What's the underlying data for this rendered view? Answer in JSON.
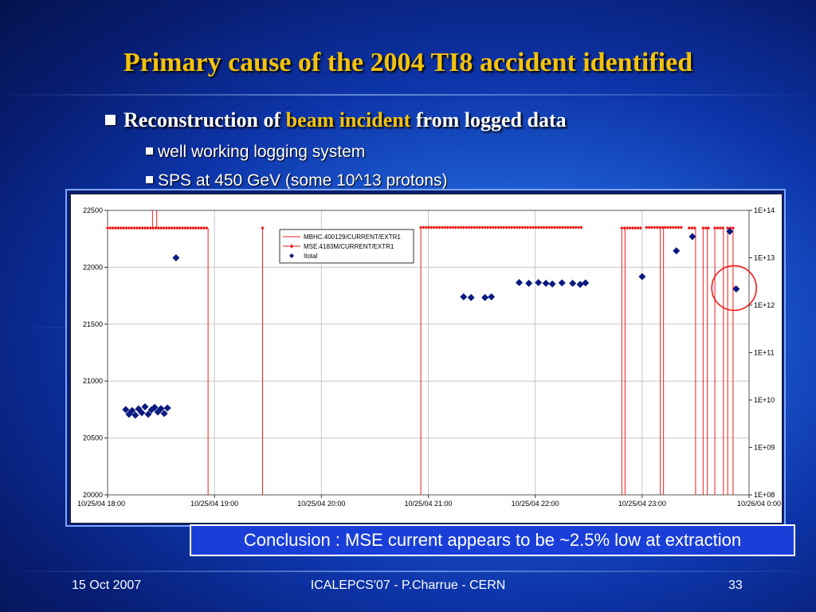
{
  "slide": {
    "title": "Primary cause of the 2004 TI8 accident identified",
    "bullet_main_pre": "Reconstruction of",
    "bullet_main_highlight": "beam incident",
    "bullet_main_post": "from logged data",
    "sub_bullets": [
      "well working logging system",
      "SPS at 450 GeV (some 10^13 protons)"
    ],
    "conclusion": "Conclusion : MSE current appears to be ~2.5% low at extraction",
    "footer": {
      "date": "15 Oct 2007",
      "center": "ICALEPCS'07 - P.Charrue - CERN",
      "page": "33"
    },
    "colors": {
      "title": "#f4c20d",
      "highlight": "#f4c20d",
      "series_red": "#ee1c1c",
      "series_blue": "#0a1a80",
      "annotation_circle": "#ee1c1c"
    }
  },
  "chart_data": {
    "type": "line",
    "y_left": {
      "ylim": [
        20000,
        22500
      ],
      "ticks": [
        "20000",
        "20500",
        "21000",
        "21500",
        "22000",
        "22500"
      ]
    },
    "y_right": {
      "scale": "log",
      "ylim": [
        100000000.0,
        100000000000000.0
      ],
      "ticks": [
        "1E+08",
        "1E+09",
        "1E+10",
        "1E+11",
        "1E+12",
        "1E+13",
        "1E+14"
      ]
    },
    "x_ticks": [
      "10/25/04 18:00",
      "10/25/04 19:00",
      "10/25/04 20:00",
      "10/25/04 21:00",
      "10/25/04 22:00",
      "10/25/04 23:00",
      "10/26/04 0:00"
    ],
    "x_range_hours": [
      0,
      6
    ],
    "legend": [
      "MBHC.400129/CURRENT/EXTR1",
      "MSE.4183M/CURRENT/EXTR1",
      "Itotal"
    ],
    "legend_position": "top-center",
    "grid": true,
    "series": [
      {
        "name": "MBHC.400129/CURRENT/EXTR1",
        "axis": "left",
        "style": "spikes",
        "spikes_hours": [
          0.94,
          1.45,
          2.93,
          4.81,
          4.84,
          5.17,
          5.2,
          5.5,
          5.57,
          5.61,
          5.68,
          5.76,
          5.8,
          5.85
        ],
        "tall_spikes_hours": [
          0.42,
          0.46
        ]
      },
      {
        "name": "MSE.4183M/CURRENT/EXTR1",
        "axis": "left",
        "segments": [
          {
            "x_start": 0.0,
            "x_end": 0.94,
            "y": 22345
          },
          {
            "x_start": 1.45,
            "x_end": 1.45,
            "y": 22345
          },
          {
            "x_start": 2.93,
            "x_end": 4.43,
            "y": 22350
          },
          {
            "x_start": 4.81,
            "x_end": 4.99,
            "y": 22345
          },
          {
            "x_start": 5.04,
            "x_end": 5.38,
            "y": 22350
          },
          {
            "x_start": 5.44,
            "x_end": 5.5,
            "y": 22345
          },
          {
            "x_start": 5.57,
            "x_end": 5.63,
            "y": 22345
          },
          {
            "x_start": 5.68,
            "x_end": 5.76,
            "y": 22345
          },
          {
            "x_start": 5.8,
            "x_end": 5.86,
            "y": 22345
          }
        ],
        "points": [
          {
            "x": 5.87,
            "y": 21820
          }
        ]
      },
      {
        "name": "Itotal",
        "axis": "right",
        "points": [
          {
            "x": 0.17,
            "y": 6300000000.0
          },
          {
            "x": 0.2,
            "y": 5000000000.0
          },
          {
            "x": 0.23,
            "y": 6000000000.0
          },
          {
            "x": 0.26,
            "y": 4800000000.0
          },
          {
            "x": 0.29,
            "y": 6500000000.0
          },
          {
            "x": 0.32,
            "y": 5400000000.0
          },
          {
            "x": 0.35,
            "y": 7200000000.0
          },
          {
            "x": 0.38,
            "y": 5000000000.0
          },
          {
            "x": 0.41,
            "y": 6200000000.0
          },
          {
            "x": 0.44,
            "y": 7000000000.0
          },
          {
            "x": 0.47,
            "y": 5600000000.0
          },
          {
            "x": 0.5,
            "y": 6600000000.0
          },
          {
            "x": 0.53,
            "y": 5200000000.0
          },
          {
            "x": 0.56,
            "y": 6800000000.0
          },
          {
            "x": 0.64,
            "y": 10000000000000.0
          },
          {
            "x": 3.33,
            "y": 1500000000000.0
          },
          {
            "x": 3.4,
            "y": 1450000000000.0
          },
          {
            "x": 3.53,
            "y": 1450000000000.0
          },
          {
            "x": 3.59,
            "y": 1500000000000.0
          },
          {
            "x": 3.85,
            "y": 3000000000000.0
          },
          {
            "x": 3.94,
            "y": 2900000000000.0
          },
          {
            "x": 4.03,
            "y": 3000000000000.0
          },
          {
            "x": 4.1,
            "y": 2900000000000.0
          },
          {
            "x": 4.16,
            "y": 2800000000000.0
          },
          {
            "x": 4.25,
            "y": 2950000000000.0
          },
          {
            "x": 4.35,
            "y": 2900000000000.0
          },
          {
            "x": 4.42,
            "y": 2750000000000.0
          },
          {
            "x": 4.47,
            "y": 2950000000000.0
          },
          {
            "x": 5.0,
            "y": 4000000000000.0
          },
          {
            "x": 5.32,
            "y": 14000000000000.0
          },
          {
            "x": 5.47,
            "y": 28000000000000.0
          },
          {
            "x": 5.82,
            "y": 36000000000000.0
          },
          {
            "x": 5.88,
            "y": 2200000000000.0
          }
        ]
      }
    ],
    "annotation": {
      "type": "circle",
      "x": 5.86,
      "y_right": 2300000000000.0
    }
  }
}
